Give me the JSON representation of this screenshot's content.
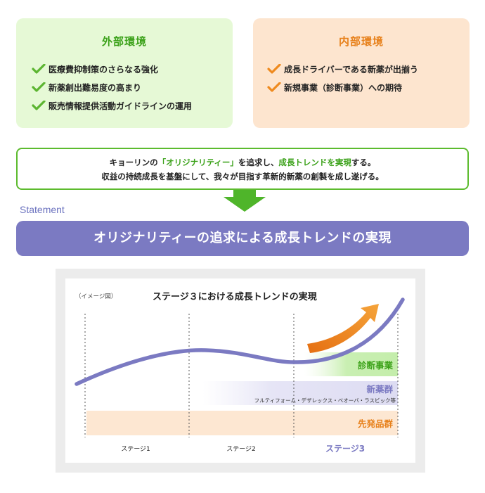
{
  "external": {
    "title": "外部環境",
    "items": [
      "医療費抑制策のさらなる強化",
      "新薬創出難易度の高まり",
      "販売情報提供活動ガイドラインの運用"
    ]
  },
  "internal": {
    "title": "内部環境",
    "items": [
      "成長ドライバーである新薬が出揃う",
      "新規事業（診断事業）への期待"
    ]
  },
  "statement_text": {
    "l1_a": "キョーリンの",
    "l1_b": "「オリジナリティー」",
    "l1_c": "を追求し、",
    "l1_d": "成長トレンドを実現",
    "l1_e": "する。",
    "line2": "収益の持続成長を基盤にして、我々が目指す革新的新薬の創製を成し遂げる。"
  },
  "statement_label": "Statement",
  "banner": "オリジナリティーの追求による成長トレンドの実現",
  "chart": {
    "note": "（イメージ図）",
    "title": "ステージ３における成長トレンドの実現",
    "bands": {
      "diagnostic": "診断事業",
      "new_drugs": "新薬群",
      "new_drugs_sub": "フルティフォーム・デザレックス・ベオーバ・ラスビック等",
      "pioneer": "先発品群"
    },
    "stages": [
      "ステージ1",
      "ステージ2",
      "ステージ3"
    ]
  },
  "colors": {
    "green": "#3aa118",
    "orange": "#e7801a",
    "purple": "#7b7ac2",
    "check_green": "#5cb531",
    "check_orange": "#ef8a1e"
  }
}
